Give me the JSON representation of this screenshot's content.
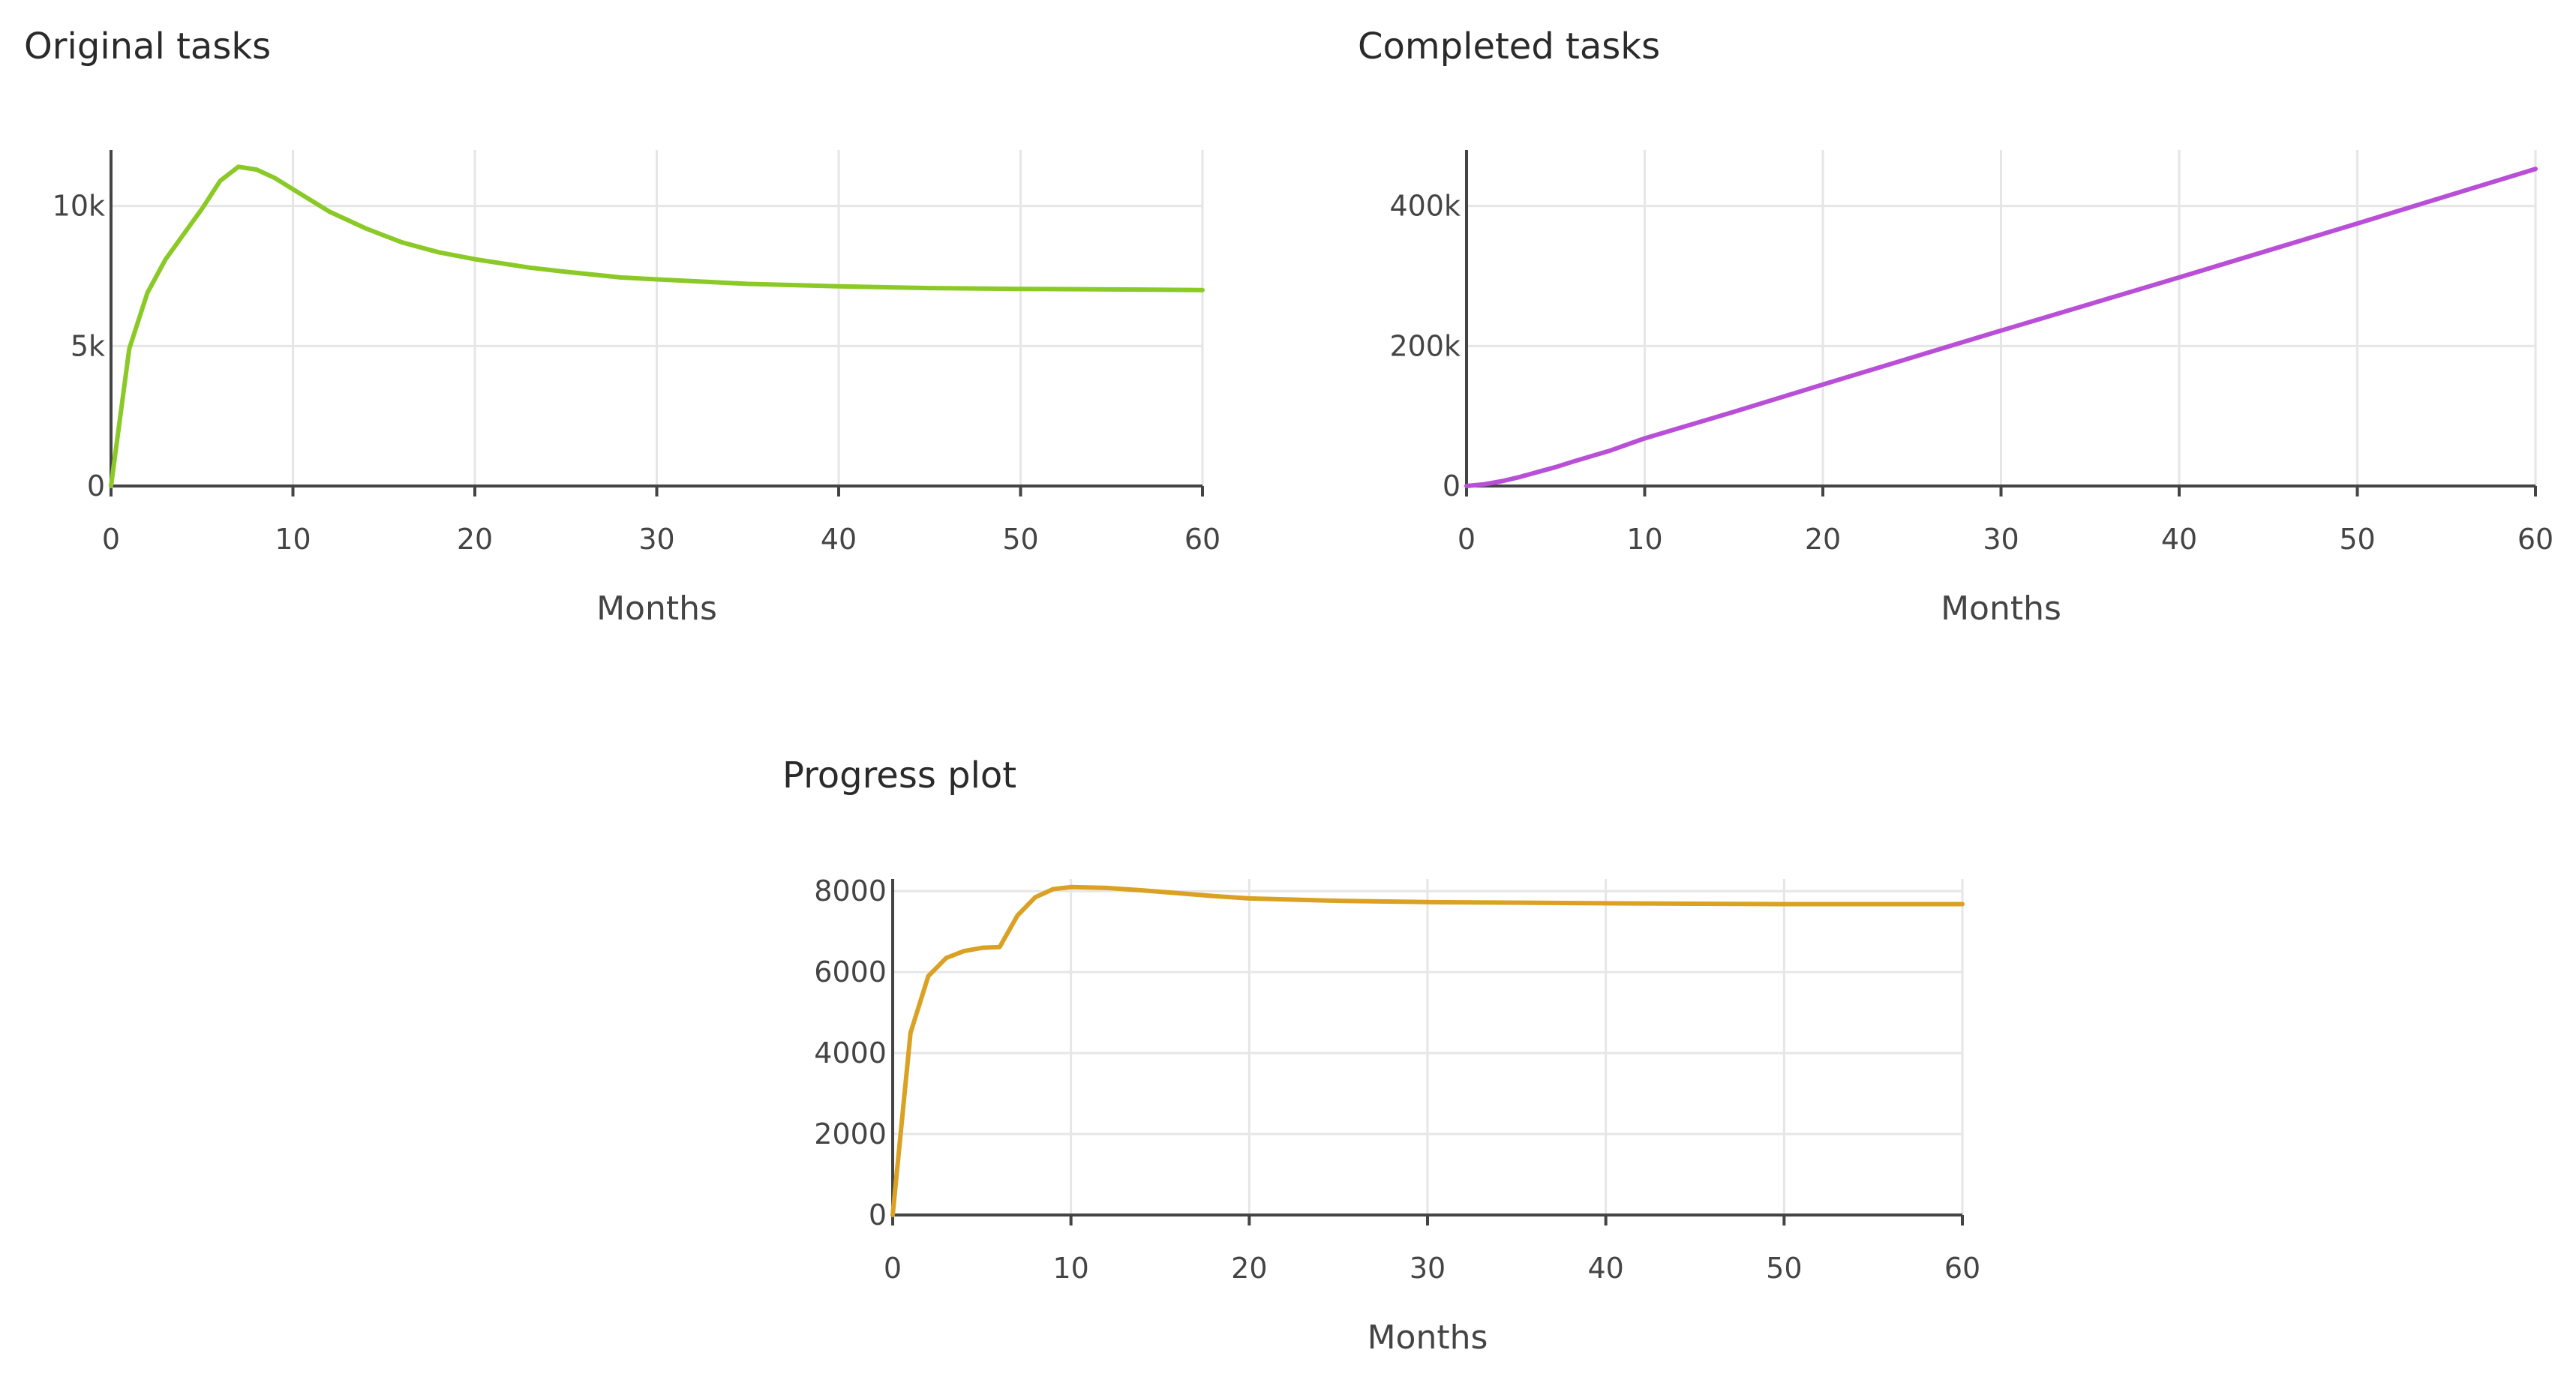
{
  "chart_data": [
    {
      "type": "line",
      "title": "Original tasks",
      "xlabel": "Months",
      "ylabel": "",
      "xlim": [
        0,
        60
      ],
      "ylim": [
        0,
        12000
      ],
      "x_ticks": [
        0,
        10,
        20,
        30,
        40,
        50,
        60
      ],
      "x_tick_labels": [
        "0",
        "10",
        "20",
        "30",
        "40",
        "50",
        "60"
      ],
      "y_ticks": [
        0,
        5000,
        10000
      ],
      "y_tick_labels": [
        "0",
        "5k",
        "10k"
      ],
      "grid": true,
      "color": "#8ac926",
      "series": [
        {
          "x": [
            0,
            1,
            2,
            3,
            4,
            5,
            6,
            7,
            8,
            9,
            10,
            12,
            14,
            16,
            18,
            20,
            23,
            25,
            28,
            30,
            35,
            40,
            45,
            50,
            55,
            60
          ],
          "values": [
            0,
            4900,
            6900,
            8100,
            9000,
            9900,
            10900,
            11400,
            11300,
            11000,
            10600,
            9800,
            9200,
            8700,
            8350,
            8100,
            7800,
            7650,
            7450,
            7380,
            7220,
            7130,
            7070,
            7040,
            7020,
            7000
          ]
        }
      ]
    },
    {
      "type": "line",
      "title": "Completed tasks",
      "xlabel": "Months",
      "ylabel": "",
      "xlim": [
        0,
        60
      ],
      "ylim": [
        0,
        480000
      ],
      "x_ticks": [
        0,
        10,
        20,
        30,
        40,
        50,
        60
      ],
      "x_tick_labels": [
        "0",
        "10",
        "20",
        "30",
        "40",
        "50",
        "60"
      ],
      "y_ticks": [
        0,
        200000,
        400000
      ],
      "y_tick_labels": [
        "0",
        "200k",
        "400k"
      ],
      "grid": true,
      "color": "#b84fd6",
      "series": [
        {
          "x": [
            0,
            1,
            2,
            3,
            4,
            5,
            6,
            8,
            10,
            15,
            20,
            30,
            40,
            50,
            60
          ],
          "values": [
            0,
            2500,
            7000,
            13000,
            20000,
            27000,
            35000,
            50000,
            68000,
            106000,
            145000,
            222000,
            298000,
            375000,
            453000
          ]
        }
      ]
    },
    {
      "type": "line",
      "title": "Progress plot",
      "xlabel": "Months",
      "ylabel": "",
      "xlim": [
        0,
        60
      ],
      "ylim": [
        0,
        8300
      ],
      "x_ticks": [
        0,
        10,
        20,
        30,
        40,
        50,
        60
      ],
      "x_tick_labels": [
        "0",
        "10",
        "20",
        "30",
        "40",
        "50",
        "60"
      ],
      "y_ticks": [
        0,
        2000,
        4000,
        6000,
        8000
      ],
      "y_tick_labels": [
        "0",
        "2000",
        "4000",
        "6000",
        "8000"
      ],
      "grid": true,
      "color": "#daa123",
      "series": [
        {
          "x": [
            0,
            1,
            2,
            3,
            4,
            5,
            6,
            7,
            8,
            9,
            10,
            12,
            14,
            16,
            18,
            20,
            25,
            30,
            40,
            50,
            60
          ],
          "values": [
            0,
            4500,
            5900,
            6350,
            6520,
            6600,
            6620,
            7400,
            7850,
            8050,
            8100,
            8080,
            8020,
            7950,
            7880,
            7820,
            7760,
            7730,
            7700,
            7680,
            7680
          ]
        }
      ]
    }
  ]
}
